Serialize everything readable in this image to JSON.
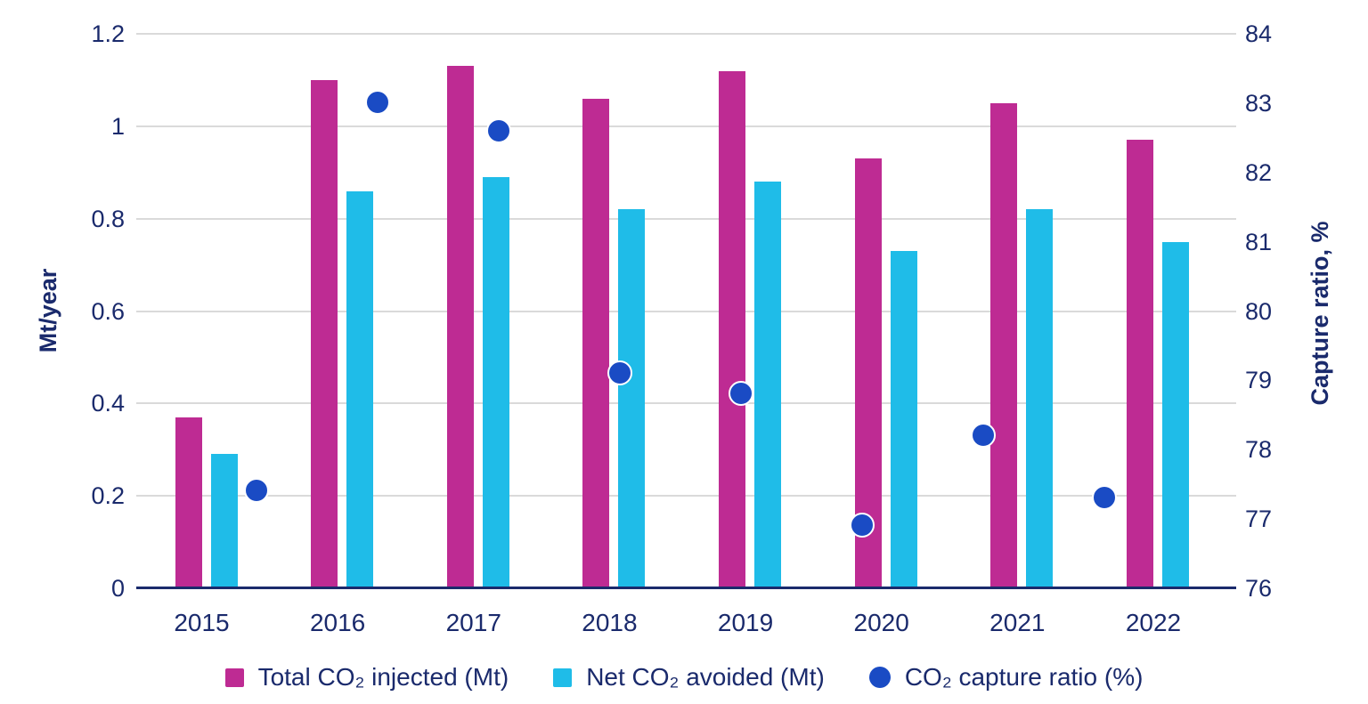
{
  "chart_data": {
    "type": "bar",
    "categories": [
      "2015",
      "2016",
      "2017",
      "2018",
      "2019",
      "2020",
      "2021",
      "2022"
    ],
    "series": [
      {
        "name": "Total CO₂ injected (Mt)",
        "type": "bar",
        "axis": "left",
        "color": "#BE2B93",
        "values": [
          0.37,
          1.1,
          1.13,
          1.06,
          1.12,
          0.93,
          1.05,
          0.97
        ]
      },
      {
        "name": "Net CO₂ avoided (Mt)",
        "type": "bar",
        "axis": "left",
        "color": "#1FBCE8",
        "values": [
          0.29,
          0.86,
          0.89,
          0.82,
          0.88,
          0.73,
          0.82,
          0.75
        ]
      },
      {
        "name": "CO₂ capture ratio (%)",
        "type": "scatter",
        "axis": "right",
        "color": "#1A4BC4",
        "values": [
          77.4,
          83.0,
          82.6,
          79.1,
          78.8,
          76.9,
          78.2,
          77.3
        ]
      }
    ],
    "left_axis": {
      "label": "Mt/year",
      "min": 0,
      "max": 1.2,
      "tick_values": [
        0,
        0.2,
        0.4,
        0.6,
        0.8,
        1,
        1.2
      ],
      "tick_labels": [
        "0",
        "0.2",
        "0.4",
        "0.6",
        "0.8",
        "1",
        "1.2"
      ]
    },
    "right_axis": {
      "label": "Capture ratio, %",
      "min": 76,
      "max": 84,
      "tick_values": [
        76,
        77,
        78,
        79,
        80,
        81,
        82,
        83,
        84
      ],
      "tick_labels": [
        "76",
        "77",
        "78",
        "79",
        "80",
        "81",
        "82",
        "83",
        "84"
      ]
    },
    "grid": true,
    "legend_position": "bottom"
  },
  "style": {
    "background": "#FFFFFF",
    "text_color": "#1A2A6C",
    "axis_line_color": "#1A2A6C",
    "gridline_color": "#DADADA",
    "injected_bar_color": "#BE2B93",
    "avoided_bar_color": "#1FBCE8",
    "capture_ratio_dot_color": "#1A4BC4"
  }
}
